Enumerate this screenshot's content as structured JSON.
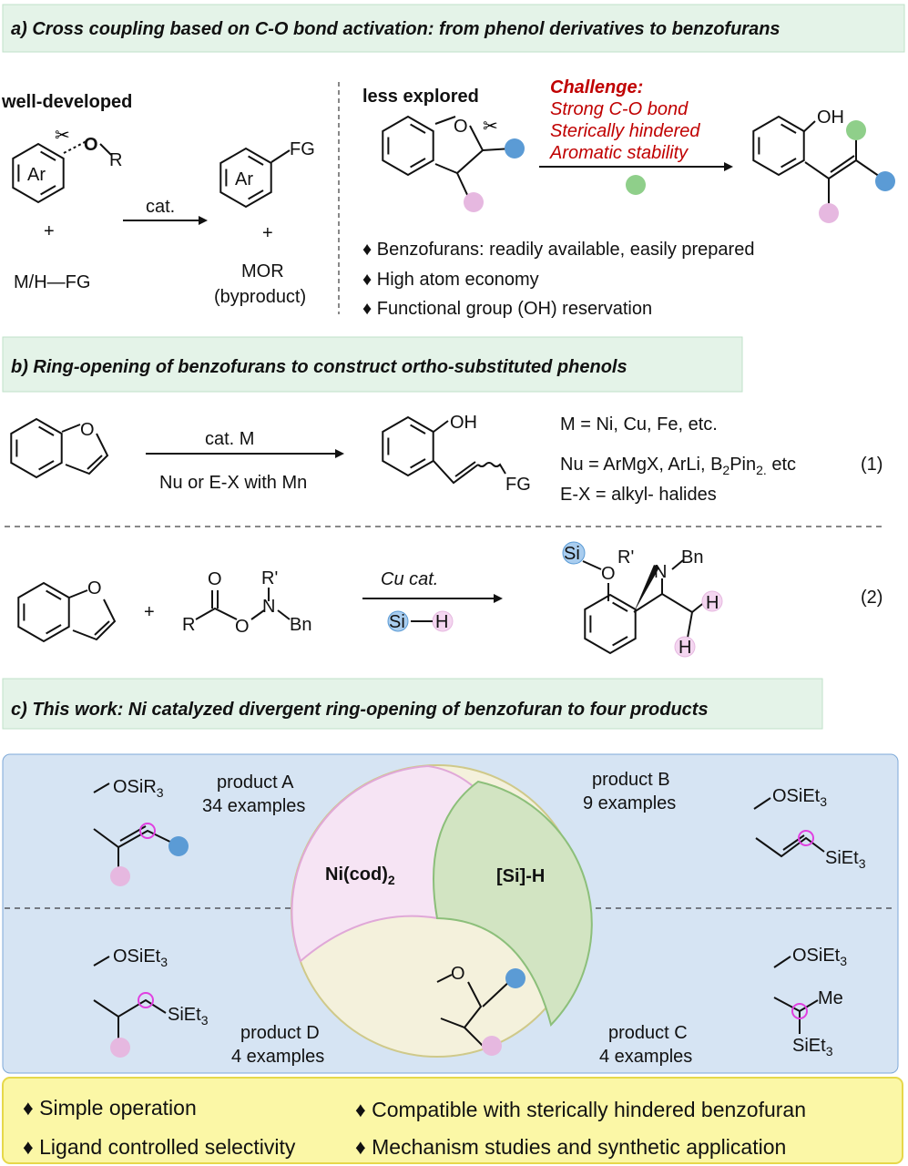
{
  "colors": {
    "header_bg": "#e4f3e8",
    "header_border": "#bfe2c8",
    "challenge": "#c00000",
    "panel_bg": "#d6e4f3",
    "panel_border": "#7ea9d8",
    "footer_bg": "#fbf7a6",
    "footer_border": "#e6d84a",
    "blue_dot": "#5b9bd5",
    "pink_dot": "#e6b8e0",
    "green_dot": "#8fcf8a",
    "magenta_circle": "#e040e0"
  },
  "section_a": {
    "title": "a)  Cross coupling based on C-O bond activation: from phenol derivatives to benzofurans",
    "left": {
      "label": "well-developed",
      "ar": "Ar",
      "o": "O",
      "r": "R",
      "plus": "+",
      "reagent": "M/H—FG",
      "cat": "cat.",
      "fg": "FG",
      "plus2": "+",
      "mor": "MOR",
      "byproduct": "(byproduct)"
    },
    "right": {
      "label": "less explored",
      "o": "O",
      "oh": "OH",
      "challenge_title": "Challenge:",
      "challenges": [
        "Strong C-O bond",
        "Sterically hindered",
        "Aromatic stability"
      ]
    },
    "bullets": [
      "Benzofurans: readily available, easily prepared",
      "High atom economy",
      "Functional group (OH) reservation"
    ]
  },
  "section_b": {
    "title": "b) Ring-opening of benzofurans to construct ortho-substituted phenols",
    "eq1": {
      "o": "O",
      "cat": "cat. M",
      "cond": "Nu or E-X with Mn",
      "oh": "OH",
      "fg": "FG",
      "m_line": "M = Ni, Cu, Fe, etc.",
      "nu_line": "Nu  = ArMgX, ArLi, B",
      "nu_sub": "2",
      "nu_rest": "Pin",
      "nu_sub2": "2.",
      "nu_end": " etc",
      "ex_line": "E-X = alkyl- halides",
      "number": "(1)"
    },
    "eq2": {
      "o": "O",
      "plus": "+",
      "ester_o1": "O",
      "ester_r": "R",
      "ester_o2": "O",
      "n": "N",
      "rprime": "R'",
      "bn": "Bn",
      "cat": "Cu cat.",
      "si": "Si",
      "h": "H",
      "p_si": "Si",
      "p_o": "O",
      "p_rprime": "R'",
      "p_n": "N",
      "p_bn": "Bn",
      "p_h1": "H",
      "p_h2": "H",
      "number": "(2)"
    }
  },
  "section_c": {
    "title": "c) This work: Ni catalyzed divergent ring-opening of  benzofuran to four products",
    "center": {
      "ni": "Ni(cod)",
      "ni_sub": "2",
      "si": "[Si]-H",
      "o": "O"
    },
    "product_a": {
      "name": "product A",
      "count": "34 examples",
      "group": "OSiR",
      "group_sub": "3"
    },
    "product_b": {
      "name": "product B",
      "count": "9 examples",
      "group": "OSiEt",
      "group_sub": "3",
      "sub2": "SiEt",
      "sub2_sub": "3"
    },
    "product_c": {
      "name": "product C",
      "count": "4 examples",
      "group": "OSiEt",
      "group_sub": "3",
      "me": "Me",
      "sub2": "SiEt",
      "sub2_sub": "3"
    },
    "product_d": {
      "name": "product D",
      "count": "4 examples",
      "group": "OSiEt",
      "group_sub": "3",
      "sub2": "SiEt",
      "sub2_sub": "3"
    }
  },
  "footer": {
    "bullets": [
      "Simple operation",
      "Compatible with sterically hindered benzofuran",
      "Ligand controlled selectivity",
      "Mechanism studies and synthetic application"
    ]
  }
}
